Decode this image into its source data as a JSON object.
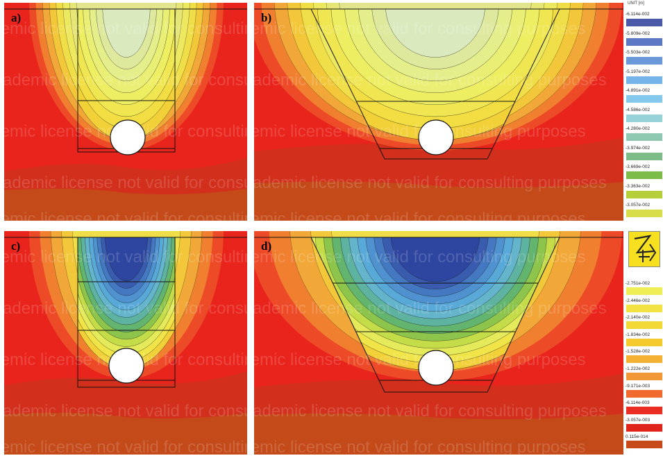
{
  "panels": [
    {
      "id": "a",
      "label": "a)"
    },
    {
      "id": "b",
      "label": "b)"
    },
    {
      "id": "c",
      "label": "c)"
    },
    {
      "id": "d",
      "label": "d)"
    }
  ],
  "watermark_text": "Academic license not valid for consulting purposes",
  "legend_top": {
    "unit": "UNIT [m]",
    "values": [
      "-6.114e-002",
      "-5.809e-002",
      "-5.503e-002",
      "-5.197e-002",
      "-4.891e-002",
      "-4.586e-002",
      "-4.280e-002",
      "-3.974e-002",
      "-3.669e-002",
      "-3.363e-002",
      "-3.057e-002"
    ],
    "colors": [
      "#4a5aa8",
      "#5d78c2",
      "#6b98d8",
      "#75b4e8",
      "#84c8ec",
      "#96d2d8",
      "#8fc8b0",
      "#7dbc86",
      "#7bbb48",
      "#b4cf3a",
      "#d8dd4a"
    ]
  },
  "legend_bottom": {
    "values": [
      "-2.751e-002",
      "-2.446e-002",
      "-2.140e-002",
      "-1.834e-002",
      "-1.528e-002",
      "-1.222e-002",
      "-9.171e-003",
      "-6.114e-003",
      "-3.057e-003",
      "0.115e-014"
    ],
    "colors": [
      "#f0ee56",
      "#f2e342",
      "#f1d834",
      "#f4ca2e",
      "#f4b134",
      "#f39838",
      "#ef6a2c",
      "#ea2e24",
      "#e0241c",
      "#c84a1a"
    ]
  }
}
